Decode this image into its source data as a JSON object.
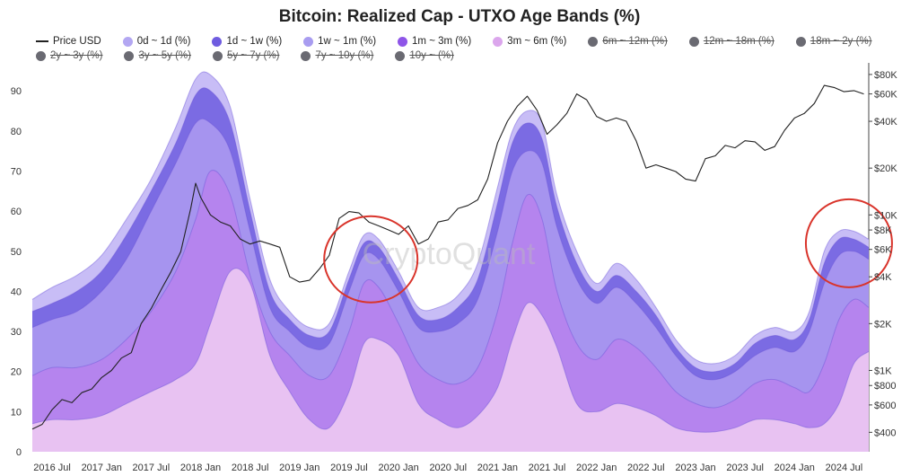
{
  "header": {
    "title": "Bitcoin: Realized Cap - UTXO Age Bands (%)"
  },
  "watermark": "CryptoQuant",
  "legend": [
    {
      "label": "Price USD",
      "kind": "line",
      "color": "#222222",
      "active": true
    },
    {
      "label": "0d ~ 1d (%)",
      "kind": "dot",
      "color": "#b3a7f2",
      "active": true
    },
    {
      "label": "1d ~ 1w (%)",
      "kind": "dot",
      "color": "#6f5ce0",
      "active": true
    },
    {
      "label": "1w ~ 1m (%)",
      "kind": "dot",
      "color": "#a89cf0",
      "active": true
    },
    {
      "label": "1m ~ 3m (%)",
      "kind": "dot",
      "color": "#8e55e8",
      "active": true
    },
    {
      "label": "3m ~ 6m (%)",
      "kind": "dot",
      "color": "#dba6ec",
      "active": true
    },
    {
      "label": "6m ~ 12m (%)",
      "kind": "dot",
      "color": "#6a6a72",
      "active": false
    },
    {
      "label": "12m ~ 18m (%)",
      "kind": "dot",
      "color": "#6a6a72",
      "active": false
    },
    {
      "label": "18m ~ 2y (%)",
      "kind": "dot",
      "color": "#6a6a72",
      "active": false
    },
    {
      "label": "2y ~ 3y (%)",
      "kind": "dot",
      "color": "#6a6a72",
      "active": false
    },
    {
      "label": "3y ~ 5y (%)",
      "kind": "dot",
      "color": "#6a6a72",
      "active": false
    },
    {
      "label": "5y ~ 7y (%)",
      "kind": "dot",
      "color": "#6a6a72",
      "active": false
    },
    {
      "label": "7y ~ 10y (%)",
      "kind": "dot",
      "color": "#6a6a72",
      "active": false
    },
    {
      "label": "10y ~ (%)",
      "kind": "dot",
      "color": "#6a6a72",
      "active": false
    }
  ],
  "chart_data": {
    "type": "area",
    "title": "Bitcoin: Realized Cap - UTXO Age Bands (%)",
    "x_range": [
      2016.3,
      2024.75
    ],
    "x_ticks": [
      {
        "label": "2016 Jul",
        "t": 2016.5
      },
      {
        "label": "2017 Jan",
        "t": 2017.0
      },
      {
        "label": "2017 Jul",
        "t": 2017.5
      },
      {
        "label": "2018 Jan",
        "t": 2018.0
      },
      {
        "label": "2018 Jul",
        "t": 2018.5
      },
      {
        "label": "2019 Jan",
        "t": 2019.0
      },
      {
        "label": "2019 Jul",
        "t": 2019.5
      },
      {
        "label": "2020 Jan",
        "t": 2020.0
      },
      {
        "label": "2020 Jul",
        "t": 2020.5
      },
      {
        "label": "2021 Jan",
        "t": 2021.0
      },
      {
        "label": "2021 Jul",
        "t": 2021.5
      },
      {
        "label": "2022 Jan",
        "t": 2022.0
      },
      {
        "label": "2022 Jul",
        "t": 2022.5
      },
      {
        "label": "2023 Jan",
        "t": 2023.0
      },
      {
        "label": "2023 Jul",
        "t": 2023.5
      },
      {
        "label": "2024 Jan",
        "t": 2024.0
      },
      {
        "label": "2024 Jul",
        "t": 2024.5
      }
    ],
    "y_left": {
      "range": [
        0,
        97
      ],
      "ticks": [
        0,
        10,
        20,
        30,
        40,
        50,
        60,
        70,
        80,
        90
      ]
    },
    "y_right": {
      "scale": "log",
      "range": [
        300,
        95000
      ],
      "ticks": [
        {
          "label": "$400",
          "v": 400
        },
        {
          "label": "$600",
          "v": 600
        },
        {
          "label": "$800",
          "v": 800
        },
        {
          "label": "$1K",
          "v": 1000
        },
        {
          "label": "$2K",
          "v": 2000
        },
        {
          "label": "$4K",
          "v": 4000
        },
        {
          "label": "$6K",
          "v": 6000
        },
        {
          "label": "$8K",
          "v": 8000
        },
        {
          "label": "$10K",
          "v": 10000
        },
        {
          "label": "$20K",
          "v": 20000
        },
        {
          "label": "$40K",
          "v": 40000
        },
        {
          "label": "$60K",
          "v": 60000
        },
        {
          "label": "$80K",
          "v": 80000
        }
      ]
    },
    "x": [
      2016.3,
      2016.5,
      2016.75,
      2017.0,
      2017.25,
      2017.5,
      2017.75,
      2017.95,
      2018.1,
      2018.3,
      2018.5,
      2018.7,
      2018.9,
      2019.1,
      2019.3,
      2019.5,
      2019.65,
      2019.8,
      2020.0,
      2020.2,
      2020.4,
      2020.6,
      2020.8,
      2021.0,
      2021.15,
      2021.3,
      2021.45,
      2021.6,
      2021.8,
      2022.0,
      2022.2,
      2022.4,
      2022.6,
      2022.8,
      2023.0,
      2023.2,
      2023.4,
      2023.6,
      2023.8,
      2024.0,
      2024.15,
      2024.3,
      2024.45,
      2024.6,
      2024.75
    ],
    "series": [
      {
        "name": "3m ~ 6m (%)",
        "color": "#e8c2f2",
        "values": [
          7,
          8,
          8,
          9,
          12,
          15,
          18,
          22,
          32,
          45,
          42,
          24,
          15,
          8,
          6,
          15,
          27,
          28,
          24,
          12,
          8,
          6,
          9,
          16,
          28,
          37,
          34,
          26,
          12,
          10,
          12,
          11,
          9,
          6,
          5,
          5,
          6,
          8,
          8,
          7,
          6,
          7,
          12,
          22,
          25
        ]
      },
      {
        "name": "1m ~ 3m (%)",
        "color": "#b584ee",
        "values": [
          19,
          21,
          21,
          23,
          28,
          35,
          45,
          58,
          70,
          64,
          44,
          30,
          24,
          19,
          19,
          30,
          42,
          41,
          32,
          22,
          18,
          17,
          21,
          35,
          52,
          64,
          58,
          40,
          27,
          23,
          28,
          26,
          21,
          15,
          12,
          11,
          13,
          17,
          18,
          16,
          15,
          22,
          33,
          38,
          36
        ]
      },
      {
        "name": "1w ~ 1m (%)",
        "color": "#a694ef",
        "values": [
          31,
          33,
          35,
          40,
          48,
          60,
          72,
          82,
          82,
          75,
          55,
          36,
          30,
          26,
          27,
          40,
          49,
          48,
          40,
          31,
          30,
          32,
          38,
          55,
          70,
          75,
          72,
          56,
          43,
          37,
          41,
          37,
          31,
          24,
          19,
          18,
          20,
          24,
          26,
          25,
          30,
          42,
          49,
          50,
          48
        ]
      },
      {
        "name": "1d ~ 1w (%)",
        "color": "#7b6be3",
        "values": [
          35,
          37,
          40,
          45,
          54,
          65,
          77,
          89,
          90,
          82,
          60,
          40,
          33,
          29,
          30,
          43,
          52,
          51,
          43,
          34,
          33,
          36,
          43,
          62,
          77,
          82,
          78,
          61,
          47,
          40,
          44,
          40,
          34,
          26,
          21,
          20,
          22,
          27,
          29,
          28,
          33,
          47,
          53,
          53,
          51
        ]
      },
      {
        "name": "0d ~ 1d (%)",
        "color": "#c8bdf6",
        "values": [
          38,
          41,
          44,
          49,
          58,
          68,
          81,
          93,
          94,
          86,
          63,
          43,
          35,
          31,
          32,
          45,
          54,
          53,
          45,
          36,
          36,
          39,
          47,
          66,
          80,
          85,
          82,
          64,
          50,
          42,
          47,
          43,
          36,
          28,
          23,
          22,
          24,
          29,
          31,
          30,
          35,
          50,
          55,
          55,
          53
        ]
      }
    ],
    "price": {
      "name": "Price USD",
      "color": "#222222",
      "axis": "right",
      "t": [
        2016.3,
        2016.4,
        2016.5,
        2016.6,
        2016.7,
        2016.8,
        2016.9,
        2017.0,
        2017.1,
        2017.2,
        2017.3,
        2017.4,
        2017.5,
        2017.6,
        2017.7,
        2017.8,
        2017.9,
        2017.95,
        2018.0,
        2018.1,
        2018.2,
        2018.3,
        2018.4,
        2018.5,
        2018.6,
        2018.7,
        2018.8,
        2018.9,
        2019.0,
        2019.1,
        2019.2,
        2019.3,
        2019.4,
        2019.5,
        2019.6,
        2019.7,
        2019.8,
        2019.9,
        2020.0,
        2020.1,
        2020.2,
        2020.3,
        2020.4,
        2020.5,
        2020.6,
        2020.7,
        2020.8,
        2020.9,
        2021.0,
        2021.1,
        2021.2,
        2021.3,
        2021.4,
        2021.5,
        2021.6,
        2021.7,
        2021.8,
        2021.9,
        2022.0,
        2022.1,
        2022.2,
        2022.3,
        2022.4,
        2022.5,
        2022.6,
        2022.7,
        2022.8,
        2022.9,
        2023.0,
        2023.1,
        2023.2,
        2023.3,
        2023.4,
        2023.5,
        2023.6,
        2023.7,
        2023.8,
        2023.9,
        2024.0,
        2024.1,
        2024.2,
        2024.3,
        2024.4,
        2024.5,
        2024.6,
        2024.7
      ],
      "values": [
        420,
        450,
        560,
        650,
        620,
        720,
        760,
        900,
        1000,
        1200,
        1300,
        2000,
        2500,
        3300,
        4300,
        5800,
        11000,
        16000,
        13000,
        10000,
        9000,
        8500,
        7000,
        6500,
        6800,
        6500,
        6200,
        4000,
        3700,
        3800,
        4500,
        5500,
        9500,
        10500,
        10300,
        9000,
        8500,
        8000,
        7500,
        8500,
        6500,
        7000,
        9000,
        9300,
        11000,
        11500,
        12500,
        17000,
        29000,
        40000,
        50000,
        58000,
        47000,
        33000,
        38000,
        45000,
        60000,
        55000,
        43000,
        40000,
        42000,
        40000,
        30000,
        20000,
        21000,
        20000,
        19000,
        17000,
        16500,
        23000,
        24000,
        28000,
        27000,
        30000,
        29500,
        26000,
        27500,
        35000,
        42000,
        45000,
        52000,
        68000,
        66000,
        62000,
        63000,
        60000
      ]
    }
  }
}
